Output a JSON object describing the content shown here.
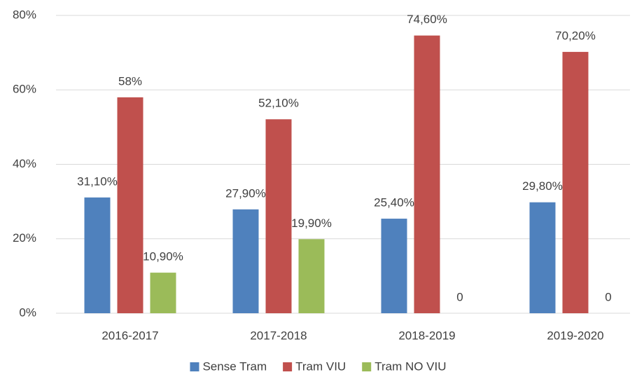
{
  "chart_data": {
    "type": "bar",
    "categories": [
      "2016-2017",
      "2017-2018",
      "2018-2019",
      "2019-2020"
    ],
    "series": [
      {
        "name": "Sense Tram",
        "color": "#4f81bd",
        "values": [
          31.1,
          27.9,
          25.4,
          29.8
        ],
        "value_labels": [
          "31,10%",
          "27,90%",
          "25,40%",
          "29,80%"
        ]
      },
      {
        "name": "Tram VIU",
        "color": "#c0504d",
        "values": [
          58,
          52.1,
          74.6,
          70.2
        ],
        "value_labels": [
          "58%",
          "52,10%",
          "74,60%",
          "70,20%"
        ]
      },
      {
        "name": "Tram NO VIU",
        "color": "#9bbb59",
        "values": [
          10.9,
          19.9,
          0,
          0
        ],
        "value_labels": [
          "10,90%",
          "19,90%",
          "0",
          "0"
        ]
      }
    ],
    "ylim": [
      0,
      80
    ],
    "yticks": [
      {
        "value": 0,
        "label": "0%"
      },
      {
        "value": 20,
        "label": "20%"
      },
      {
        "value": 40,
        "label": "40%"
      },
      {
        "value": 60,
        "label": "60%"
      },
      {
        "value": 80,
        "label": "80%"
      }
    ],
    "grid": true,
    "legend": "bottom"
  }
}
